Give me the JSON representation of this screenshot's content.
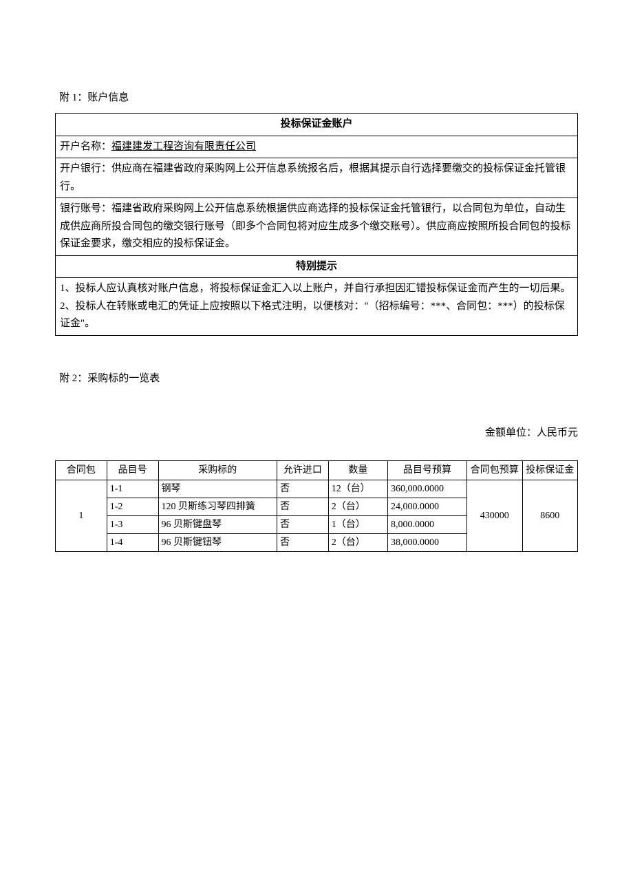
{
  "attachment1": {
    "title": "附 1：账户信息",
    "account_header": "投标保证金账户",
    "account_name_label": "开户名称：",
    "account_name_value": "福建建发工程咨询有限责任公司",
    "bank_info": "开户银行：供应商在福建省政府采购网上公开信息系统报名后，根据其提示自行选择要缴交的投标保证金托管银行。",
    "account_number_info": "银行账号：福建省政府采购网上公开信息系统根据供应商选择的投标保证金托管银行，以合同包为单位，自动生成供应商所投合同包的缴交银行账号（即多个合同包将对应生成多个缴交账号）。供应商应按照所投合同包的投标保证金要求，缴交相应的投标保证金。",
    "notice_header": "特别提示",
    "notice1": "1、投标人应认真核对账户信息，将投标保证金汇入以上账户，并自行承担因汇错投标保证金而产生的一切后果。",
    "notice2": "2、投标人在转账或电汇的凭证上应按照以下格式注明，以便核对：\"（招标编号：***、合同包：***）的投标保证金\"。"
  },
  "attachment2": {
    "title": "附 2：采购标的一览表",
    "currency_unit": "金额单位：人民币元",
    "headers": {
      "package": "合同包",
      "item_no": "品目号",
      "target": "采购标的",
      "import_allowed": "允许进口",
      "quantity": "数量",
      "item_budget": "品目号预算",
      "package_budget": "合同包预算",
      "deposit": "投标保证金"
    },
    "package_no": "1",
    "package_budget": "430000",
    "package_deposit": "8600",
    "rows": [
      {
        "item_no": "1-1",
        "target": "钢琴",
        "import_allowed": "否",
        "quantity": "12（台）",
        "budget": "360,000.0000"
      },
      {
        "item_no": "1-2",
        "target": "120 贝斯练习琴四排簧",
        "import_allowed": "否",
        "quantity": "2（台）",
        "budget": "24,000.0000"
      },
      {
        "item_no": "1-3",
        "target": "96 贝斯键盘琴",
        "import_allowed": "否",
        "quantity": "1（台）",
        "budget": "8,000.0000"
      },
      {
        "item_no": "1-4",
        "target": "96 贝斯键钮琴",
        "import_allowed": "否",
        "quantity": "2（台）",
        "budget": "38,000.0000"
      }
    ]
  }
}
